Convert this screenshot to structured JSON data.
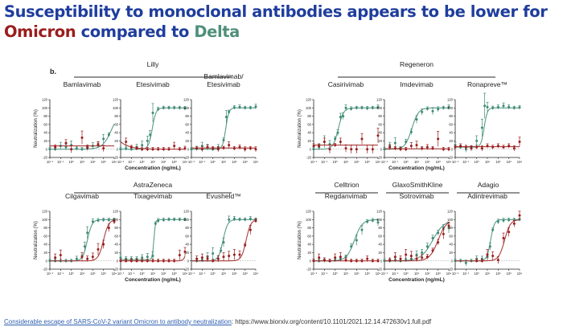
{
  "slide": {
    "title_line1": "Susceptibility to monoclonal antibodies appears to be lower for",
    "title_omicron": "Omicron",
    "title_middle": " compared to ",
    "title_delta": "Delta",
    "panel_label": "b.",
    "footer_link": "Considerable escape of SARS-CoV-2 variant Omicron to antibody neutralization",
    "footer_sep": ": ",
    "footer_url": "https://www.biorxiv.org/content/10.1101/2021.12.14.472630v1.full.pdf"
  },
  "colors": {
    "title": "#1f3d9c",
    "omicron": "#9b1c1c",
    "delta": "#3d8a74",
    "link": "#2e5fb0"
  },
  "chart_data": {
    "type": "line",
    "y_axis_label": "Neutralization (%)",
    "x_axis_label": "Concentration (ng/mL)",
    "x_scale": "log10",
    "x_ticks": [
      "10⁻²",
      "10⁻¹",
      "10⁰",
      "10¹",
      "10²",
      "10³",
      "10⁴"
    ],
    "x_tick_exponents": [
      -2,
      -1,
      0,
      1,
      2,
      3,
      4
    ],
    "y_ticks": [
      -20,
      0,
      20,
      40,
      60,
      80,
      100,
      120
    ],
    "ylim": [
      -20,
      120
    ],
    "xlim_log10": [
      -2,
      4
    ],
    "series_names": [
      "Delta",
      "Omicron"
    ],
    "groups": [
      {
        "company": "Lilly",
        "panels": [
          0,
          1,
          2
        ]
      },
      {
        "company": "Regeneron",
        "panels": [
          3,
          4,
          5
        ]
      },
      {
        "company": "AstraZeneca",
        "panels": [
          6,
          7,
          8
        ]
      },
      {
        "company": "Celltrion",
        "panels": [
          9
        ]
      },
      {
        "company": "GlaxoSmithKline",
        "panels": [
          10
        ]
      },
      {
        "company": "Adagio",
        "panels": [
          11
        ]
      }
    ],
    "panels": [
      {
        "name": "Bamlavimab",
        "delta": {
          "x": [
            -2,
            -1.5,
            -1,
            -0.5,
            0,
            0.5,
            1,
            1.5,
            2,
            2.5,
            3,
            3.5
          ],
          "y": [
            0,
            0,
            8,
            5,
            10,
            2,
            0,
            2,
            8,
            10,
            25,
            35
          ],
          "fit": {
            "ec50": 3.8,
            "top": 100,
            "bottom": 0,
            "hill": 1
          }
        },
        "omicron": {
          "x": [
            -1.5,
            -0.5,
            0,
            1,
            1.5,
            2.5,
            3
          ],
          "y": [
            5,
            15,
            0,
            28,
            4,
            12,
            2
          ],
          "fit": {
            "flat": 8
          }
        }
      },
      {
        "name": "Etesivimab",
        "delta": {
          "x": [
            -2,
            -1.5,
            -1,
            -0.5,
            0,
            0.5,
            0.75,
            1,
            1.5,
            2,
            2.5,
            3,
            3.5,
            4
          ],
          "y": [
            0,
            2,
            0,
            5,
            10,
            20,
            35,
            88,
            97,
            100,
            100,
            100,
            100,
            99
          ],
          "fit": {
            "ec50": 0.95,
            "top": 100,
            "bottom": 0,
            "hill": 2.5
          }
        },
        "omicron": {
          "x": [
            -1.5,
            -1,
            -0.5,
            0,
            0.5,
            1,
            1.5,
            2,
            2.5,
            3,
            3.5,
            4
          ],
          "y": [
            18,
            5,
            2,
            0,
            0,
            0,
            0,
            0,
            0,
            8,
            0,
            2
          ],
          "fit": {
            "decay": 18
          }
        }
      },
      {
        "name": "Bamlavimab/\nEtesivimab",
        "delta": {
          "x": [
            -2,
            -1.5,
            -1,
            -0.5,
            0,
            0.5,
            1,
            1.25,
            1.5,
            2,
            2.5,
            3,
            3.5,
            4
          ],
          "y": [
            0,
            2,
            8,
            5,
            0,
            5,
            22,
            78,
            90,
            101,
            102,
            100,
            100,
            103
          ],
          "fit": {
            "ec50": 1.2,
            "top": 100,
            "bottom": 0,
            "hill": 3
          }
        },
        "omicron": {
          "x": [
            -1.5,
            -1,
            -0.5,
            0,
            0.5,
            1,
            1.5,
            2,
            2.5,
            3,
            3.5,
            4
          ],
          "y": [
            2,
            0,
            5,
            2,
            0,
            3,
            10,
            2,
            5,
            0,
            2,
            0
          ],
          "fit": {
            "flat": 3
          }
        }
      },
      {
        "name": "Casirivimab",
        "delta": {
          "x": [
            -2,
            -1.5,
            -1,
            -0.5,
            0,
            0.25,
            0.5,
            0.75,
            1,
            1.5,
            2,
            2.5,
            3,
            3.5,
            4
          ],
          "y": [
            0,
            5,
            18,
            12,
            25,
            40,
            78,
            80,
            100,
            98,
            100,
            100,
            99,
            100,
            102
          ],
          "fit": {
            "ec50": 0.3,
            "top": 100,
            "bottom": 0,
            "hill": 1.8
          }
        },
        "omicron": {
          "x": [
            -2,
            -1.5,
            -1,
            -0.5,
            0,
            0.5,
            1,
            1.5,
            2,
            2.5,
            3,
            3.5,
            4
          ],
          "y": [
            8,
            8,
            18,
            0,
            10,
            18,
            2,
            0,
            0,
            25,
            0,
            0,
            33
          ],
          "fit": {
            "flat": 10
          }
        }
      },
      {
        "name": "Imdevimab",
        "delta": {
          "x": [
            -2,
            -1.5,
            -1,
            -0.5,
            0,
            0.5,
            1,
            1.5,
            2,
            2.5,
            3,
            3.5,
            4
          ],
          "y": [
            0,
            8,
            15,
            2,
            18,
            42,
            72,
            90,
            98,
            92,
            97,
            100,
            102
          ],
          "fit": {
            "ec50": 0.55,
            "top": 100,
            "bottom": 0,
            "hill": 1.4
          }
        },
        "omicron": {
          "x": [
            -1.5,
            -1,
            -0.5,
            0,
            0.5,
            1,
            1.5,
            2,
            2.5,
            3,
            3.5,
            4
          ],
          "y": [
            5,
            2,
            0,
            0,
            8,
            10,
            2,
            5,
            2,
            25,
            0,
            0
          ],
          "fit": {
            "flat": 1
          }
        }
      },
      {
        "name": "Ronapreve™",
        "delta": {
          "x": [
            -2,
            -1.5,
            -1,
            -0.5,
            0,
            0.5,
            0.75,
            1,
            1.5,
            2,
            2.5,
            3,
            3.5,
            4
          ],
          "y": [
            10,
            5,
            0,
            5,
            20,
            52,
            105,
            102,
            100,
            102,
            105,
            102,
            100,
            101
          ],
          "fit": {
            "ec50": 0.7,
            "top": 100,
            "bottom": 5,
            "hill": 3
          }
        },
        "omicron": {
          "x": [
            -2,
            -1.5,
            -1,
            -0.5,
            0,
            0.5,
            1,
            1.5,
            2,
            2.5,
            3,
            3.5,
            4
          ],
          "y": [
            5,
            8,
            5,
            2,
            5,
            2,
            8,
            5,
            8,
            5,
            8,
            2,
            18
          ],
          "fit": {
            "flat": 6
          }
        }
      },
      {
        "name": "Cilgavimab",
        "delta": {
          "x": [
            -2,
            -1.5,
            -1,
            -0.5,
            0,
            0.5,
            1,
            1.25,
            1.5,
            2,
            2.5,
            3,
            3.5,
            4
          ],
          "y": [
            0,
            0,
            0,
            0,
            0,
            5,
            10,
            35,
            68,
            95,
            98,
            99,
            99,
            99
          ],
          "fit": {
            "ec50": 1.5,
            "top": 100,
            "bottom": 0,
            "hill": 2
          }
        },
        "omicron": {
          "x": [
            -1.5,
            -1,
            1,
            1.5,
            2,
            2.5,
            3,
            3.5,
            4
          ],
          "y": [
            8,
            14,
            10,
            5,
            10,
            28,
            40,
            80,
            95
          ],
          "fit": {
            "ec50": 3.0,
            "top": 100,
            "bottom": 0,
            "hill": 1.8
          }
        }
      },
      {
        "name": "Tixagevimab",
        "delta": {
          "x": [
            -2,
            -1.5,
            -1,
            -0.5,
            0,
            0.5,
            1,
            1.25,
            1.5,
            2,
            2.5,
            3,
            3.5,
            4
          ],
          "y": [
            8,
            5,
            5,
            5,
            8,
            10,
            12,
            90,
            97,
            99,
            100,
            100,
            100,
            100
          ],
          "fit": {
            "ec50": 1.1,
            "top": 100,
            "bottom": 3,
            "hill": 6
          }
        },
        "omicron": {
          "x": [
            -2,
            -1.5,
            -1,
            -0.5,
            0,
            0.5,
            1,
            1.5,
            2,
            2.5,
            3,
            3.5,
            4
          ],
          "y": [
            0,
            0,
            0,
            0,
            0,
            0,
            0,
            0,
            0,
            0,
            0,
            14,
            22
          ],
          "fit": {
            "ec50": 4.3,
            "top": 100,
            "bottom": 0,
            "hill": 3
          }
        }
      },
      {
        "name": "Evusheld™",
        "delta": {
          "x": [
            -1.5,
            -1,
            -0.5,
            0,
            0.5,
            0.75,
            1,
            1.5,
            2,
            2.5,
            3,
            3.5,
            4
          ],
          "y": [
            0,
            2,
            10,
            18,
            5,
            25,
            45,
            100,
            102,
            100,
            100,
            102,
            100
          ],
          "fit": {
            "ec50": 0.95,
            "top": 100,
            "bottom": 0,
            "hill": 2
          }
        },
        "omicron": {
          "x": [
            -1.5,
            -1,
            -0.5,
            0,
            0.5,
            1,
            1.5,
            2,
            2.5,
            3,
            3.5,
            4
          ],
          "y": [
            5,
            8,
            5,
            0,
            5,
            10,
            12,
            15,
            15,
            38,
            75,
            97
          ],
          "fit": {
            "ec50": 3.1,
            "top": 100,
            "bottom": 0,
            "hill": 2
          }
        }
      },
      {
        "name": "Regdanvimab",
        "delta": {
          "x": [
            -2,
            -1.5,
            -1,
            -0.5,
            0,
            0.5,
            1,
            1.5,
            2,
            2.5,
            3,
            3.5,
            4
          ],
          "y": [
            0,
            0,
            2,
            0,
            2,
            5,
            10,
            35,
            50,
            75,
            95,
            98,
            93
          ],
          "fit": {
            "ec50": 1.8,
            "top": 100,
            "bottom": 0,
            "hill": 1.2
          }
        },
        "omicron": {
          "x": [
            -2,
            -1.5,
            -1,
            -0.5,
            0,
            0.5,
            1,
            1.5,
            2,
            2.5,
            3,
            3.5,
            4
          ],
          "y": [
            0,
            8,
            2,
            0,
            8,
            10,
            2,
            0,
            0,
            0,
            5,
            0,
            0
          ],
          "fit": {
            "flat": 0
          }
        }
      },
      {
        "name": "Sotrovimab",
        "delta": {
          "x": [
            -2,
            -1.5,
            -1,
            -0.5,
            0,
            0.5,
            1,
            1.5,
            2,
            2.5,
            3,
            3.5,
            4
          ],
          "y": [
            0,
            0,
            2,
            0,
            2,
            5,
            15,
            20,
            35,
            55,
            68,
            80,
            80
          ],
          "fit": {
            "ec50": 2.5,
            "top": 100,
            "bottom": 0,
            "hill": 0.8
          }
        },
        "omicron": {
          "x": [
            -1.5,
            -1,
            -0.5,
            0,
            0.5,
            1,
            1.5,
            2,
            2.5,
            3,
            3.5,
            4
          ],
          "y": [
            2,
            10,
            5,
            15,
            12,
            5,
            8,
            10,
            25,
            45,
            65,
            85
          ],
          "fit": {
            "ec50": 3.0,
            "top": 100,
            "bottom": 0,
            "hill": 1.1
          }
        }
      },
      {
        "name": "Adintrevimab",
        "delta": {
          "x": [
            -2,
            -1.5,
            -1,
            -0.5,
            0,
            0.5,
            1,
            1.25,
            1.5,
            2,
            2.5,
            3,
            3.5,
            4
          ],
          "y": [
            0,
            0,
            -5,
            0,
            5,
            5,
            10,
            35,
            75,
            95,
            98,
            99,
            99,
            100
          ],
          "fit": {
            "ec50": 1.3,
            "top": 100,
            "bottom": 0,
            "hill": 2.5
          }
        },
        "omicron": {
          "x": [
            0,
            0.5,
            1,
            1.5,
            2,
            2.5,
            3,
            3.5,
            4
          ],
          "y": [
            0,
            0,
            15,
            12,
            2,
            55,
            70,
            90,
            110
          ],
          "fit": {
            "ec50": 2.6,
            "top": 100,
            "bottom": 0,
            "hill": 1.6
          }
        }
      }
    ]
  }
}
